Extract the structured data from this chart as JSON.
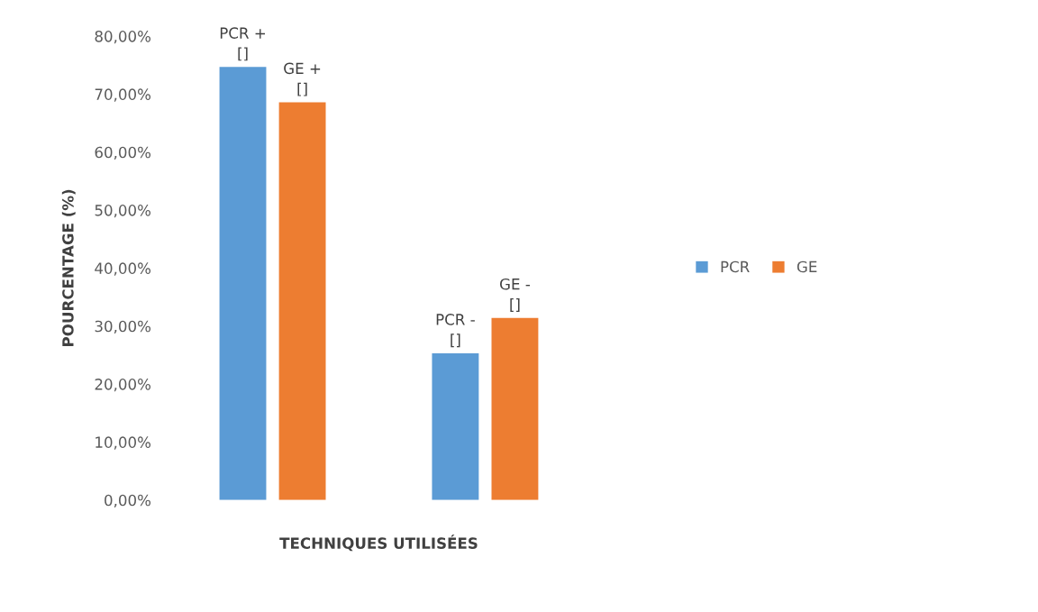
{
  "chart_data": {
    "type": "bar",
    "xlabel": "TECHNIQUES UTILISÉES",
    "ylabel": "POURCENTAGE (%)",
    "categories": [
      null,
      null
    ],
    "series": [
      {
        "name": "PCR",
        "color": "#5b9bd5",
        "values": [
          74.7,
          25.3
        ],
        "value_labels": [
          "PCR +\n[]",
          "PCR -\n[]"
        ]
      },
      {
        "name": "GE",
        "color": "#ed7d31",
        "values": [
          68.6,
          31.4
        ],
        "value_labels": [
          "GE +\n[]",
          "GE -\n[]"
        ]
      }
    ],
    "ylim": [
      0,
      80
    ],
    "yticks": [
      {
        "value": 0,
        "label": "0,00%"
      },
      {
        "value": 10,
        "label": "10,00%"
      },
      {
        "value": 20,
        "label": "20,00%"
      },
      {
        "value": 30,
        "label": "30,00%"
      },
      {
        "value": 40,
        "label": "40,00%"
      },
      {
        "value": 50,
        "label": "50,00%"
      },
      {
        "value": 60,
        "label": "60,00%"
      },
      {
        "value": 70,
        "label": "70,00%"
      },
      {
        "value": 80,
        "label": "80,00%"
      }
    ],
    "grid": false,
    "legend": "right"
  }
}
